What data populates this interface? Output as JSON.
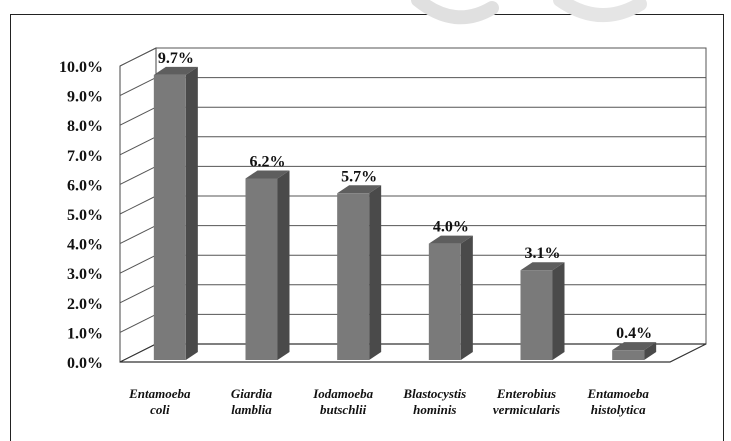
{
  "chart_data": {
    "type": "bar",
    "categories": [
      [
        "Entamoeba",
        "coli"
      ],
      [
        "Giardia",
        "lamblia"
      ],
      [
        "Iodamoeba",
        "butschlii"
      ],
      [
        "Blastocystis",
        "hominis"
      ],
      [
        "Enterobius",
        "vermicularis"
      ],
      [
        "Entamoeba",
        "histolytica"
      ]
    ],
    "values": [
      9.7,
      6.2,
      5.7,
      4.0,
      3.1,
      0.4
    ],
    "data_labels": [
      "9.7%",
      "6.2%",
      "5.7%",
      "4.0%",
      "3.1%",
      "0.4%"
    ],
    "ylim": [
      0,
      10
    ],
    "yticks": [
      "0.0%",
      "1.0%",
      "2.0%",
      "3.0%",
      "4.0%",
      "5.0%",
      "6.0%",
      "7.0%",
      "8.0%",
      "9.0%",
      "10.0%"
    ],
    "title": "",
    "xlabel": "",
    "ylabel": "",
    "grid": true,
    "legend": "none",
    "style": "3d-bar",
    "colors": {
      "bar_front": "#7a7a7a",
      "bar_side": "#4a4a4a",
      "bar_top": "#5e5e5e",
      "grid": "#555555",
      "back_wall": "#ffffff"
    }
  }
}
